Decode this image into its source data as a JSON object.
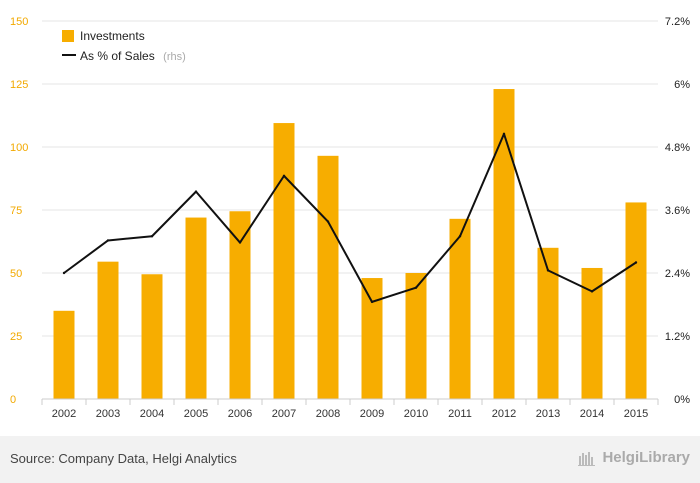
{
  "chart_data": {
    "type": "bar",
    "categories": [
      "2002",
      "2003",
      "2004",
      "2005",
      "2006",
      "2007",
      "2008",
      "2009",
      "2010",
      "2011",
      "2012",
      "2013",
      "2014",
      "2015"
    ],
    "series": [
      {
        "name": "Investments",
        "type": "bar",
        "axis": "left",
        "color": "#f7ad00",
        "values": [
          35,
          54.5,
          49.5,
          72,
          74.5,
          109.5,
          96.5,
          48,
          50,
          71.5,
          123,
          60,
          52,
          78
        ]
      },
      {
        "name": "As % of Sales",
        "type": "line",
        "axis": "right",
        "color": "#111111",
        "values": [
          2.4,
          3.02,
          3.1,
          3.95,
          2.98,
          4.25,
          3.38,
          1.85,
          2.12,
          3.1,
          5.05,
          2.45,
          2.05,
          2.6
        ]
      }
    ],
    "yleft": {
      "ticks": [
        "0",
        "25",
        "50",
        "75",
        "100",
        "125",
        "150"
      ],
      "range": [
        0,
        150
      ],
      "color": "#f2a900"
    },
    "yright": {
      "ticks": [
        "0%",
        "1.2%",
        "2.4%",
        "3.6%",
        "4.8%",
        "6%",
        "7.2%"
      ],
      "range": [
        0,
        7.2
      ]
    },
    "legend": {
      "position": "top-left",
      "items": [
        {
          "label": "Investments",
          "note": ""
        },
        {
          "label": "As % of Sales",
          "note": "(rhs)"
        }
      ]
    },
    "grid": true
  },
  "footer": {
    "source": "Source: Company Data, Helgi Analytics",
    "brand": "HelgiLibrary"
  }
}
